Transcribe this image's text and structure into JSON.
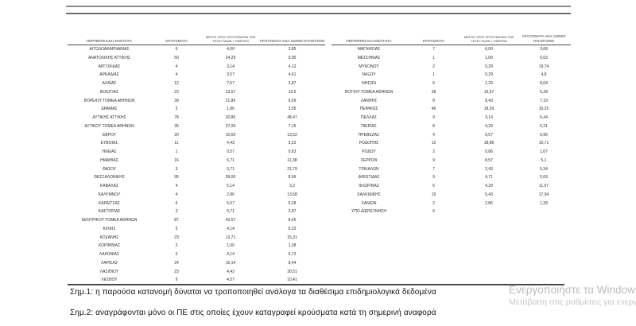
{
  "table": {
    "headers": {
      "region": "ΠΕΡΙΦΕΡΕΙΑΚΗ ΕΝΟΤΗΤΑ",
      "cases": "ΚΡΟΥΣΜΑΤΑ",
      "avg7_line1": "ΜΕΣΟΣ ΟΡΟΣ ΚΡΟΥΣΜΑΤΩΝ ΤΩΝ",
      "avg7_line2": "ΤΕΛΕΥΤΑΙΩΝ 7 ΗΜΕΡΩΝ",
      "per100k": "ΚΡΟΥΣΜΑΤΑ ΑΝΑ 100000 ΠΛΗΘΥΣΜΟ"
    },
    "left_rows": [
      {
        "region": "ΑΙΤΩΛΟΑΚΑΡΝΑΝΙΑΣ",
        "cases": "6",
        "avg7": "4,00",
        "per100k": "2,85"
      },
      {
        "region": "ΑΝΑΤΟΛΙΚΗΣ ΑΤΤΙΚΗΣ",
        "cases": "50",
        "avg7": "24,29",
        "per100k": "9,95"
      },
      {
        "region": "ΑΡΓΟΛΙΔΑΣ",
        "cases": "4",
        "avg7": "3,14",
        "per100k": "4,12"
      },
      {
        "region": "ΑΡΚΑΔΙΑΣ",
        "cases": "4",
        "avg7": "3,57",
        "per100k": "4,61"
      },
      {
        "region": "ΑΧΑΪΑΣ",
        "cases": "12",
        "avg7": "7,57",
        "per100k": "3,87"
      },
      {
        "region": "ΒΟΙΩΤΙΑΣ",
        "cases": "23",
        "avg7": "13,57",
        "per100k": "19,5"
      },
      {
        "region": "ΒΟΡΕΙΟΥ ΤΟΜΕΑ ΑΘΗΝΩΝ",
        "cases": "39",
        "avg7": "21,86",
        "per100k": "6,59"
      },
      {
        "region": "ΔΡΑΜΑΣ",
        "cases": "3",
        "avg7": "1,86",
        "per100k": "3,05"
      },
      {
        "region": "ΔΥΤΙΚΗΣ ΑΤΤΙΚΗΣ",
        "cases": "78",
        "avg7": "20,86",
        "per100k": "48,47"
      },
      {
        "region": "ΔΥΤΙΚΟΥ ΤΟΜΕΑ ΑΘΗΝΩΝ",
        "cases": "35",
        "avg7": "27,00",
        "per100k": "7,15"
      },
      {
        "region": "ΕΒΡΟΥ",
        "cases": "20",
        "avg7": "10,00",
        "per100k": "13,52"
      },
      {
        "region": "ΕΥΒΟΙΑΣ",
        "cases": "11",
        "avg7": "4,43",
        "per100k": "5,22"
      },
      {
        "region": "ΗΛΕΙΑΣ",
        "cases": "1",
        "avg7": "0,57",
        "per100k": "0,63"
      },
      {
        "region": "ΗΜΑΘΙΑΣ",
        "cases": "16",
        "avg7": "6,71",
        "per100k": "11,38"
      },
      {
        "region": "ΘΑΣΟΥ",
        "cases": "3",
        "avg7": "0,71",
        "per100k": "21,79"
      },
      {
        "region": "ΘΕΣΣΑΛΟΝΙΚΗΣ",
        "cases": "95",
        "avg7": "59,00",
        "per100k": "8,56"
      },
      {
        "region": "ΚΑΒΑΛΑΣ",
        "cases": "4",
        "avg7": "5,14",
        "per100k": "3,2"
      },
      {
        "region": "ΚΑΛΥΜΝΟΥ",
        "cases": "4",
        "avg7": "2,86",
        "per100k": "13,58"
      },
      {
        "region": "ΚΑΡΔΙΤΣΑΣ",
        "cases": "6",
        "avg7": "5,57",
        "per100k": "5,28"
      },
      {
        "region": "ΚΑΣΤΟΡΙΑΣ",
        "cases": "2",
        "avg7": "0,71",
        "per100k": "3,97"
      },
      {
        "region": "ΚΕΝΤΡΙΚΟΥ ΤΟΜΕΑ ΑΘΗΝΩΝ",
        "cases": "87",
        "avg7": "42,57",
        "per100k": "8,45"
      },
      {
        "region": "ΚΙΛΚΙΣ",
        "cases": "5",
        "avg7": "4,14",
        "per100k": "6,22"
      },
      {
        "region": "ΚΟΖΑΝΗΣ",
        "cases": "23",
        "avg7": "13,71",
        "per100k": "15,31"
      },
      {
        "region": "ΚΟΡΙΝΘΙΑΣ",
        "cases": "2",
        "avg7": "1,00",
        "per100k": "1,38"
      },
      {
        "region": "ΛΑΚΩΝΙΑΣ",
        "cases": "6",
        "avg7": "4,14",
        "per100k": "6,73"
      },
      {
        "region": "ΛΑΡΙΣΑΣ",
        "cases": "24",
        "avg7": "15,14",
        "per100k": "8,44"
      },
      {
        "region": "ΛΑΣΙΘΙΟΥ",
        "cases": "23",
        "avg7": "4,43",
        "per100k": "30,51"
      },
      {
        "region": "ΛΕΣΒΟΥ",
        "cases": "9",
        "avg7": "4,57",
        "per100k": "10,41"
      }
    ],
    "right_rows": [
      {
        "region": "ΜΑΓΝΗΣΙΑΣ",
        "cases": "7",
        "avg7": "6,00",
        "per100k": "3,68"
      },
      {
        "region": "ΜΕΣΣΗΝΙΑΣ",
        "cases": "1",
        "avg7": "1,00",
        "per100k": "0,63"
      },
      {
        "region": "ΜΥΚΟΝΟΥ",
        "cases": "2",
        "avg7": "0,29",
        "per100k": "19,74"
      },
      {
        "region": "ΝΑΞΟΥ",
        "cases": "1",
        "avg7": "0,29",
        "per100k": "4,8"
      },
      {
        "region": "ΝΗΣΩΝ",
        "cases": "6",
        "avg7": "1,29",
        "per100k": "8,04"
      },
      {
        "region": "ΝΟΤΙΟΥ ΤΟΜΕΑ ΑΘΗΝΩΝ",
        "cases": "28",
        "avg7": "16,57",
        "per100k": "5,28"
      },
      {
        "region": "ΞΑΝΘΗΣ",
        "cases": "8",
        "avg7": "8,43",
        "per100k": "7,19"
      },
      {
        "region": "ΠΕΙΡΑΙΩΣ",
        "cases": "46",
        "avg7": "18,29",
        "per100k": "10,25"
      },
      {
        "region": "ΠΕΛΛΑΣ",
        "cases": "9",
        "avg7": "3,14",
        "per100k": "6,44"
      },
      {
        "region": "ΠΙΕΡΙΑΣ",
        "cases": "8",
        "avg7": "4,29",
        "per100k": "6,31"
      },
      {
        "region": "ΠΡΕΒΕΖΑΣ",
        "cases": "4",
        "avg7": "0,57",
        "per100k": "6,96"
      },
      {
        "region": "ΡΟΔΟΠΗΣ",
        "cases": "12",
        "avg7": "18,86",
        "per100k": "10,71"
      },
      {
        "region": "ΡΟΔΟΥ",
        "cases": "2",
        "avg7": "0,86",
        "per100k": "1,67"
      },
      {
        "region": "ΣΕΡΡΩΝ",
        "cases": "9",
        "avg7": "8,57",
        "per100k": "5,1"
      },
      {
        "region": "ΤΡΙΚΑΛΩΝ",
        "cases": "7",
        "avg7": "2,43",
        "per100k": "5,34"
      },
      {
        "region": "ΦΘΙΩΤΙΔΑΣ",
        "cases": "9",
        "avg7": "4,71",
        "per100k": "5,69"
      },
      {
        "region": "ΦΛΩΡΙΝΑΣ",
        "cases": "6",
        "avg7": "4,29",
        "per100k": "11,67"
      },
      {
        "region": "ΧΑΛΚΙΔΙΚΗΣ",
        "cases": "19",
        "avg7": "5,43",
        "per100k": "17,94"
      },
      {
        "region": "ΧΑΝΙΩΝ",
        "cases": "2",
        "avg7": "2,86",
        "per100k": "1,28"
      },
      {
        "region": "ΥΠΟ ΔΙΕΡΕΥΝΗΣΗ",
        "cases": "6",
        "avg7": "",
        "per100k": ""
      }
    ]
  },
  "notes": {
    "note1": "Σημ.1: η παρούσα κατανομή δύναται να τροποποιηθεί ανάλογα τα διαθέσιμα επιδημιολογικά δεδομένα",
    "note2": "Σημ.2: αναγράφονται μόνο οι ΠΕ στις οποίες έχουν καταγραφεί κρούσματα κατά τη σημερινή αναφορά"
  },
  "watermark": {
    "line1": "Ενεργοποιήστε τα Windows",
    "line2": "Μετάβαση στις ρυθμίσεις για ενεργοποίηση"
  },
  "colors": {
    "page_background": "#ffffff",
    "table_text": "#2e2e2e",
    "rule_color": "#4a4a4a",
    "watermark_text": "#bcbcbc"
  }
}
